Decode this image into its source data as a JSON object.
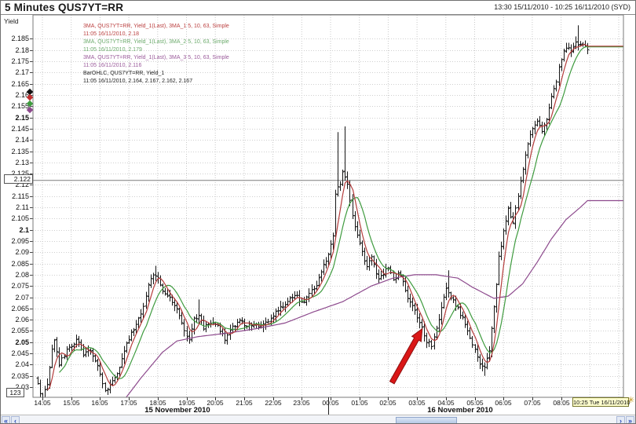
{
  "window": {
    "title": "5 Minutes QUS7YT=RR",
    "range_label": "13:30 15/11/2010 - 10:25 16/11/2010 (SYD)",
    "yield_label": "Yield"
  },
  "legend": {
    "lines": [
      {
        "text": "3MA, QUS7YT=RR, Yield_1(Last), 3MA_1 5, 10, 63, Simple",
        "color": "#bb4040"
      },
      {
        "text": "11:05 16/11/2010, 2.18",
        "color": "#bb4040"
      },
      {
        "text": "3MA, QUS7YT=RR, Yield_1(Last), 3MA_2 5, 10, 63, Simple",
        "color": "#6cab6c"
      },
      {
        "text": "11:05 16/11/2010, 2.179",
        "color": "#6cab6c"
      },
      {
        "text": "3MA, QUS7YT=RR, Yield_1(Last), 3MA_3 5, 10, 63, Simple",
        "color": "#9a5a9a"
      },
      {
        "text": "11:05 16/11/2010, 2.116",
        "color": "#9a5a9a"
      },
      {
        "text": "BarOHLC, QUS7YT=RR, Yield_1",
        "color": "#222222"
      },
      {
        "text": "11:05 16/11/2010, 2.164, 2.167, 2.162, 2.167",
        "color": "#222222"
      }
    ]
  },
  "axis": {
    "price_line_label": "2.122",
    "numbers_button_label": "123",
    "current_time_label": "10:25 Tue 16/11/2010",
    "live_update_icon_glyph": "✳",
    "date_labels": [
      "15 November 2010",
      "16 November 2010"
    ],
    "markers": [
      {
        "color": "#111111",
        "price": 2.1615
      },
      {
        "color": "#c03030",
        "price": 2.159
      },
      {
        "color": "#3f9b3f",
        "price": 2.156
      },
      {
        "color": "#8d4a8d",
        "price": 2.1535
      }
    ]
  },
  "scrollbar": {
    "left_buttons": [
      "«",
      "‹"
    ],
    "right_buttons": [
      "›",
      "»"
    ]
  },
  "annotation": {
    "shape": "arrow",
    "color": "#da1717",
    "outline": "#8f0f0f",
    "from": {
      "time": "02:13",
      "price": 2.032
    },
    "to": {
      "time": "03:16",
      "price": 2.056
    }
  },
  "chart_data": {
    "type": "ohlc",
    "title": "5 Minutes QUS7YT=RR",
    "ylabel": "Yield",
    "interval_minutes": 5,
    "time_range": [
      "13:30 15/11/2010",
      "10:25 16/11/2010 (SYD)"
    ],
    "timezone": "SYD",
    "grid": true,
    "ylim": [
      2.0255,
      2.1957
    ],
    "y_tick_min": 2.03,
    "y_tick_max": 2.185,
    "y_tick_step": 0.005,
    "bold_y_ticks": [
      2.05,
      2.1,
      2.15
    ],
    "x_tick_labels": [
      "14:05",
      "15:05",
      "16:05",
      "17:05",
      "18:05",
      "19:05",
      "20:05",
      "21:05",
      "22:05",
      "23:05",
      "00:05",
      "01:05",
      "02:05",
      "03:05",
      "04:05",
      "05:05",
      "06:05",
      "07:05",
      "08:05"
    ],
    "hline": {
      "price": 2.122,
      "label": "2.122",
      "color": "#7d7d7d"
    },
    "series": [
      {
        "name": "BarOHLC Yield_1",
        "color": "#161616",
        "last_ohlc": [
          2.164,
          2.167,
          2.162,
          2.167
        ]
      },
      {
        "name": "3MA_1 SMA(5) Simple",
        "color": "#b43c3c",
        "last": 2.18
      },
      {
        "name": "3MA_2 SMA(10) Simple",
        "color": "#3f9b3f",
        "last": 2.179
      },
      {
        "name": "3MA_3 SMA(63) Simple",
        "color": "#8d4a8d",
        "last": 2.116
      }
    ],
    "first_bar_time": "13:55",
    "last_bar_time": "09:00",
    "price_keyframes": [
      [
        "13:55",
        2.034
      ],
      [
        "14:05",
        2.028
      ],
      [
        "14:10",
        2.0255
      ],
      [
        "14:20",
        2.031
      ],
      [
        "14:30",
        2.046
      ],
      [
        "14:35",
        2.051
      ],
      [
        "14:45",
        2.04
      ],
      [
        "15:00",
        2.0465
      ],
      [
        "15:10",
        2.048
      ],
      [
        "15:20",
        2.052
      ],
      [
        "15:35",
        2.0445
      ],
      [
        "15:50",
        2.0465
      ],
      [
        "16:05",
        2.0395
      ],
      [
        "16:20",
        2.028
      ],
      [
        "16:30",
        2.0305
      ],
      [
        "16:45",
        2.036
      ],
      [
        "17:00",
        2.0455
      ],
      [
        "17:10",
        2.052
      ],
      [
        "17:25",
        2.058
      ],
      [
        "17:40",
        2.066
      ],
      [
        "17:50",
        2.0755
      ],
      [
        "18:00",
        2.0795
      ],
      [
        "18:10",
        2.078
      ],
      [
        "18:20",
        2.0725
      ],
      [
        "18:35",
        2.07
      ],
      [
        "18:50",
        2.0655
      ],
      [
        "19:05",
        2.0555
      ],
      [
        "19:15",
        2.051
      ],
      [
        "19:25",
        2.06
      ],
      [
        "19:35",
        2.0625
      ],
      [
        "19:45",
        2.0565
      ],
      [
        "20:00",
        2.0585
      ],
      [
        "20:15",
        2.0575
      ],
      [
        "20:30",
        2.051
      ],
      [
        "20:45",
        2.0565
      ],
      [
        "21:00",
        2.0595
      ],
      [
        "21:15",
        2.0575
      ],
      [
        "21:30",
        2.0585
      ],
      [
        "21:45",
        2.057
      ],
      [
        "22:00",
        2.0595
      ],
      [
        "22:15",
        2.0635
      ],
      [
        "22:30",
        2.066
      ],
      [
        "22:45",
        2.07
      ],
      [
        "23:00",
        2.0705
      ],
      [
        "23:10",
        2.0675
      ],
      [
        "23:25",
        2.071
      ],
      [
        "23:40",
        2.0755
      ],
      [
        "23:55",
        2.084
      ],
      [
        "00:05",
        2.0895
      ],
      [
        "00:15",
        2.097
      ],
      [
        "00:20",
        2.116
      ],
      [
        "00:30",
        2.121
      ],
      [
        "00:35",
        2.1265
      ],
      [
        "00:45",
        2.12
      ],
      [
        "00:55",
        2.1065
      ],
      [
        "01:05",
        2.097
      ],
      [
        "01:15",
        2.0895
      ],
      [
        "01:25",
        2.0835
      ],
      [
        "01:35",
        2.088
      ],
      [
        "01:50",
        2.0775
      ],
      [
        "02:00",
        2.0805
      ],
      [
        "02:10",
        2.0835
      ],
      [
        "02:20",
        2.0775
      ],
      [
        "02:30",
        2.0805
      ],
      [
        "02:40",
        2.0775
      ],
      [
        "02:50",
        2.0695
      ],
      [
        "03:00",
        2.0655
      ],
      [
        "03:10",
        2.0615
      ],
      [
        "03:20",
        2.0565
      ],
      [
        "03:30",
        2.0505
      ],
      [
        "03:40",
        2.0485
      ],
      [
        "03:50",
        2.056
      ],
      [
        "04:00",
        2.0655
      ],
      [
        "04:10",
        2.0745
      ],
      [
        "04:20",
        2.0705
      ],
      [
        "04:30",
        2.0665
      ],
      [
        "04:40",
        2.0625
      ],
      [
        "04:50",
        2.0585
      ],
      [
        "05:00",
        2.0525
      ],
      [
        "05:10",
        2.0465
      ],
      [
        "05:20",
        2.04
      ],
      [
        "05:30",
        2.0385
      ],
      [
        "05:40",
        2.046
      ],
      [
        "05:50",
        2.0655
      ],
      [
        "06:00",
        2.0875
      ],
      [
        "06:10",
        2.0995
      ],
      [
        "06:20",
        2.109
      ],
      [
        "06:30",
        2.1035
      ],
      [
        "06:40",
        2.1155
      ],
      [
        "06:50",
        2.1265
      ],
      [
        "07:00",
        2.1385
      ],
      [
        "07:10",
        2.1445
      ],
      [
        "07:20",
        2.149
      ],
      [
        "07:30",
        2.1445
      ],
      [
        "07:40",
        2.15
      ],
      [
        "07:50",
        2.159
      ],
      [
        "08:00",
        2.1665
      ],
      [
        "08:10",
        2.1765
      ],
      [
        "08:20",
        2.1815
      ],
      [
        "08:30",
        2.179
      ],
      [
        "08:40",
        2.1835
      ],
      [
        "08:50",
        2.1825
      ],
      [
        "09:00",
        2.181
      ]
    ],
    "wick_overrides": {
      "14:10": {
        "low": 2.0245
      },
      "16:20": {
        "low": 2.0265
      },
      "18:00": {
        "high": 2.084
      },
      "19:30": {
        "high": 2.069
      },
      "00:20": {
        "high": 2.1435
      },
      "00:35": {
        "high": 2.146
      },
      "04:10": {
        "high": 2.082
      },
      "05:25": {
        "low": 2.035
      },
      "08:40": {
        "high": 2.191
      }
    },
    "ma63_keyframes": [
      [
        "16:40",
        2.02
      ],
      [
        "17:30",
        2.034
      ],
      [
        "18:15",
        2.0455
      ],
      [
        "18:45",
        2.0505
      ],
      [
        "19:30",
        2.0525
      ],
      [
        "20:30",
        2.054
      ],
      [
        "21:30",
        2.056
      ],
      [
        "22:30",
        2.0585
      ],
      [
        "23:30",
        2.0635
      ],
      [
        "00:30",
        2.068
      ],
      [
        "01:30",
        2.075
      ],
      [
        "02:15",
        2.0785
      ],
      [
        "03:00",
        2.08
      ],
      [
        "03:45",
        2.08
      ],
      [
        "04:30",
        2.0785
      ],
      [
        "05:00",
        2.0745
      ],
      [
        "05:45",
        2.0695
      ],
      [
        "06:15",
        2.0705
      ],
      [
        "06:45",
        2.076
      ],
      [
        "07:15",
        2.0855
      ],
      [
        "07:45",
        2.096
      ],
      [
        "08:15",
        2.1045
      ],
      [
        "08:45",
        2.11
      ],
      [
        "09:00",
        2.113
      ]
    ]
  }
}
